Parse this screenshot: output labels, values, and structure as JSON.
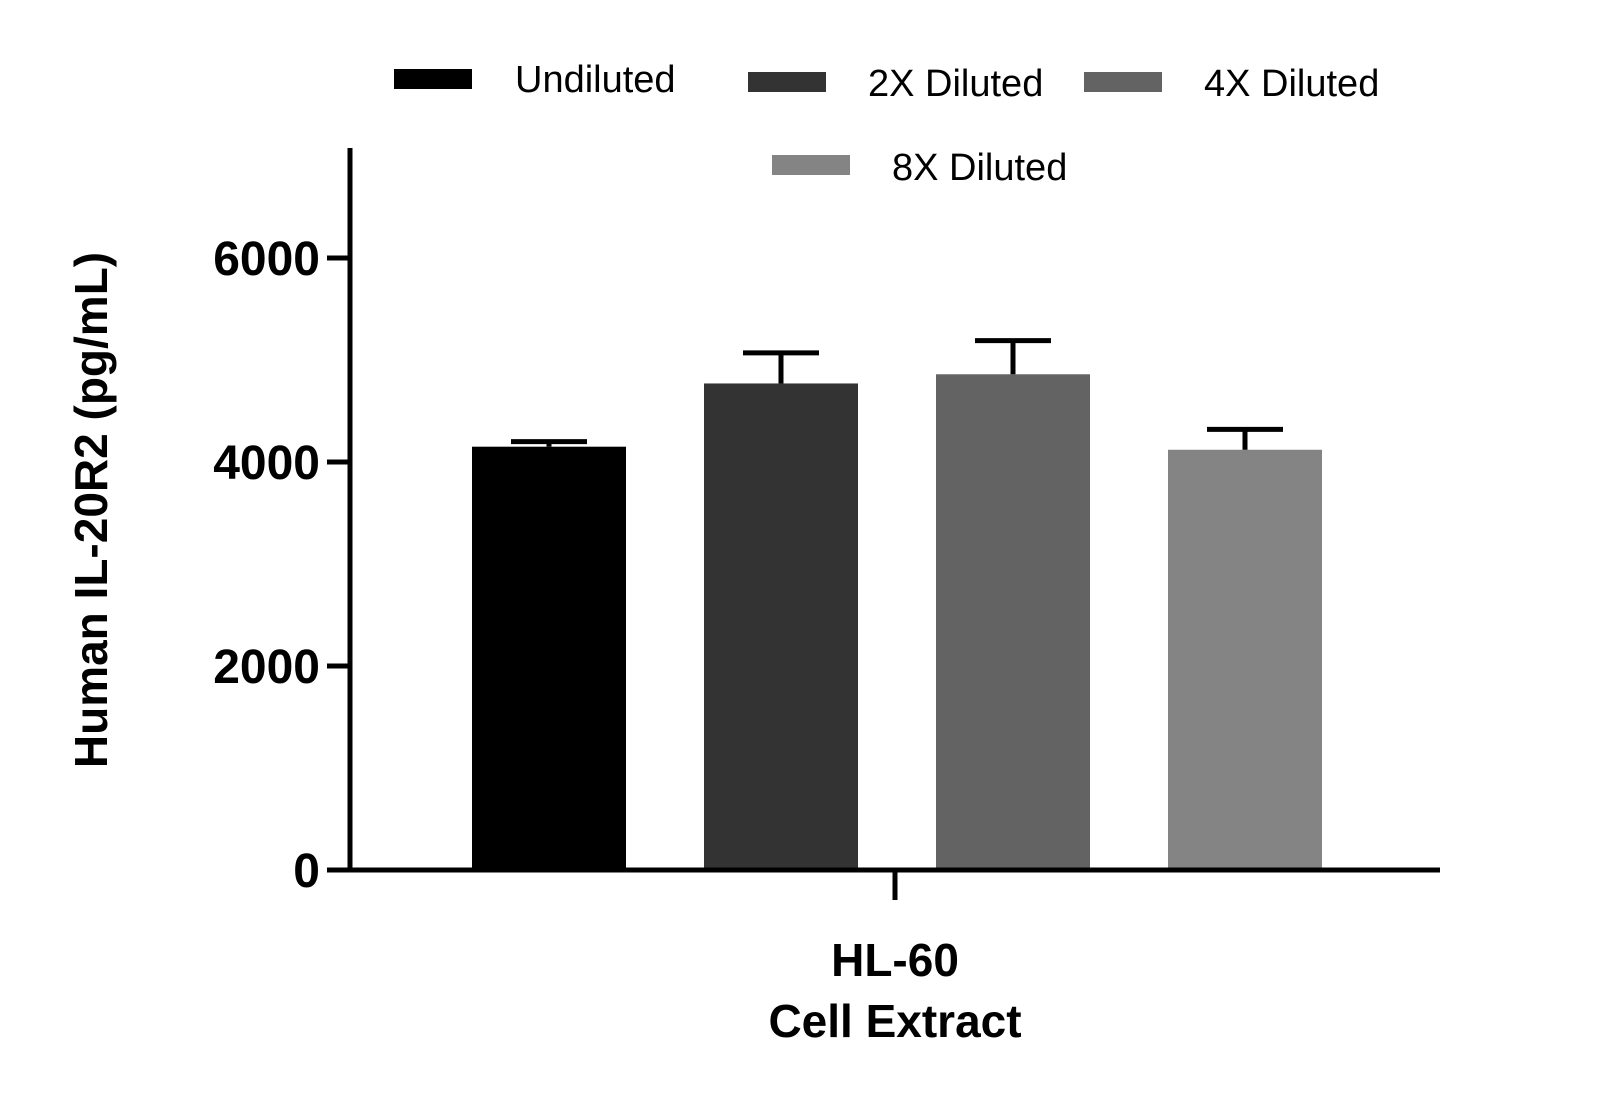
{
  "chart_data": {
    "type": "bar",
    "title": "",
    "xlabel": "",
    "ylabel": "Human IL-20R2 (pg/mL)",
    "ylim": [
      0,
      7000
    ],
    "yticks": [
      0,
      2000,
      4000,
      6000
    ],
    "category_label": [
      "HL-60",
      "Cell Extract"
    ],
    "legend_position": "top",
    "series": [
      {
        "name": "Undiluted",
        "value": 4150,
        "error": 50,
        "color": "#000000"
      },
      {
        "name": "2X Diluted",
        "value": 4770,
        "error": 300,
        "color": "#333333"
      },
      {
        "name": "4X Diluted",
        "value": 4860,
        "error": 330,
        "color": "#636363"
      },
      {
        "name": "8X Diluted",
        "value": 4120,
        "error": 200,
        "color": "#848484"
      }
    ]
  }
}
